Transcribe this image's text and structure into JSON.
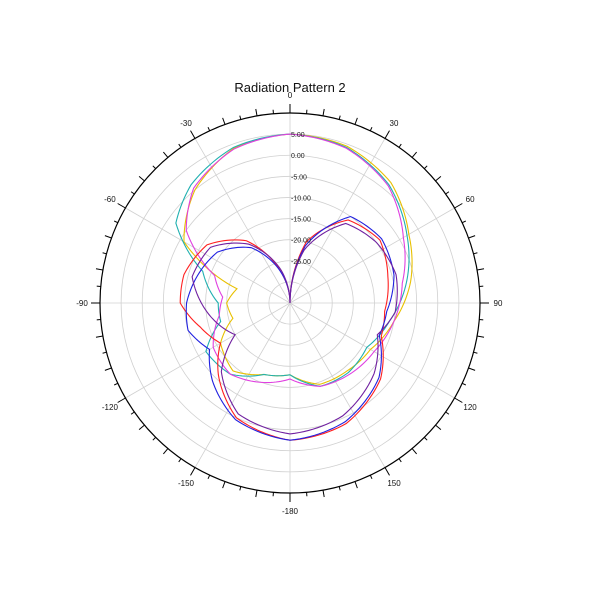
{
  "chart_data": {
    "type": "polar",
    "title": "Radiation Pattern 2",
    "angle_ticks": [
      {
        "deg": 0,
        "label": "0"
      },
      {
        "deg": 30,
        "label": "30"
      },
      {
        "deg": 60,
        "label": "60"
      },
      {
        "deg": 90,
        "label": "90"
      },
      {
        "deg": 120,
        "label": "120"
      },
      {
        "deg": 150,
        "label": "150"
      },
      {
        "deg": 180,
        "label": "-180"
      },
      {
        "deg": -150,
        "label": "-150"
      },
      {
        "deg": -120,
        "label": "-120"
      },
      {
        "deg": -90,
        "label": "-90"
      },
      {
        "deg": -60,
        "label": "-60"
      },
      {
        "deg": -30,
        "label": "-30"
      }
    ],
    "radial_min": -35,
    "radial_max": 10,
    "radial_ticks": [
      {
        "value": 5,
        "label": "5.00"
      },
      {
        "value": 0,
        "label": "0.00"
      },
      {
        "value": -5,
        "label": "-5.00"
      },
      {
        "value": -10,
        "label": "-10.00"
      },
      {
        "value": -15,
        "label": "-15.00"
      },
      {
        "value": -20,
        "label": "-20.00"
      },
      {
        "value": -25,
        "label": "-25.00"
      }
    ],
    "grid": true,
    "series": [
      {
        "color": "#e8c000",
        "points": [
          [
            0,
            5
          ],
          [
            20,
            4.5
          ],
          [
            40,
            2.2
          ],
          [
            60,
            -2.5
          ],
          [
            80,
            -6
          ],
          [
            100,
            -10
          ],
          [
            120,
            -13
          ],
          [
            140,
            -14
          ],
          [
            160,
            -14.5
          ],
          [
            180,
            -18
          ],
          [
            200,
            -17
          ],
          [
            220,
            -14
          ],
          [
            240,
            -16
          ],
          [
            255,
            -21
          ],
          [
            270,
            -20
          ],
          [
            285,
            -22
          ],
          [
            300,
            -6
          ],
          [
            320,
            0
          ],
          [
            340,
            4
          ],
          [
            360,
            5
          ]
        ]
      },
      {
        "color": "#20b0b0",
        "points": [
          [
            0,
            5
          ],
          [
            20,
            4.2
          ],
          [
            40,
            1.5
          ],
          [
            60,
            -3
          ],
          [
            80,
            -7
          ],
          [
            100,
            -11
          ],
          [
            120,
            -14
          ],
          [
            140,
            -13.5
          ],
          [
            160,
            -14
          ],
          [
            180,
            -18
          ],
          [
            200,
            -17
          ],
          [
            220,
            -13
          ],
          [
            240,
            -12
          ],
          [
            255,
            -18
          ],
          [
            270,
            -18
          ],
          [
            290,
            -13
          ],
          [
            305,
            -2
          ],
          [
            320,
            1.5
          ],
          [
            340,
            4.2
          ],
          [
            360,
            5
          ]
        ]
      },
      {
        "color": "#e040e0",
        "points": [
          [
            0,
            5
          ],
          [
            20,
            4
          ],
          [
            40,
            1.2
          ],
          [
            60,
            -4
          ],
          [
            80,
            -8
          ],
          [
            100,
            -10
          ],
          [
            120,
            -12
          ],
          [
            140,
            -13
          ],
          [
            160,
            -14
          ],
          [
            180,
            -17
          ],
          [
            200,
            -15
          ],
          [
            220,
            -13
          ],
          [
            240,
            -14
          ],
          [
            260,
            -18
          ],
          [
            275,
            -19
          ],
          [
            290,
            -16
          ],
          [
            305,
            -5
          ],
          [
            320,
            0.5
          ],
          [
            340,
            3.8
          ],
          [
            360,
            5
          ]
        ]
      },
      {
        "color": "#ff2020",
        "points": [
          [
            0,
            -35
          ],
          [
            15,
            -20
          ],
          [
            35,
            -11
          ],
          [
            55,
            -9
          ],
          [
            75,
            -11
          ],
          [
            95,
            -12.5
          ],
          [
            110,
            -12
          ],
          [
            130,
            -7
          ],
          [
            155,
            -3.5
          ],
          [
            180,
            -2.5
          ],
          [
            205,
            -5
          ],
          [
            225,
            -11
          ],
          [
            240,
            -16
          ],
          [
            255,
            -13
          ],
          [
            270,
            -9
          ],
          [
            285,
            -9
          ],
          [
            305,
            -11
          ],
          [
            325,
            -17
          ],
          [
            345,
            -28
          ],
          [
            360,
            -35
          ]
        ]
      },
      {
        "color": "#2020e0",
        "points": [
          [
            0,
            -35
          ],
          [
            15,
            -21
          ],
          [
            35,
            -10
          ],
          [
            55,
            -8.5
          ],
          [
            75,
            -9.5
          ],
          [
            95,
            -12
          ],
          [
            110,
            -12.5
          ],
          [
            130,
            -7.5
          ],
          [
            155,
            -4
          ],
          [
            180,
            -2.5
          ],
          [
            205,
            -4.5
          ],
          [
            225,
            -9
          ],
          [
            240,
            -13
          ],
          [
            255,
            -10
          ],
          [
            270,
            -10.5
          ],
          [
            285,
            -12
          ],
          [
            305,
            -14
          ],
          [
            325,
            -19
          ],
          [
            345,
            -28
          ],
          [
            360,
            -35
          ]
        ]
      },
      {
        "color": "#7020a0",
        "points": [
          [
            0,
            -35
          ],
          [
            15,
            -22
          ],
          [
            35,
            -12
          ],
          [
            55,
            -10
          ],
          [
            75,
            -9
          ],
          [
            95,
            -10
          ],
          [
            110,
            -13
          ],
          [
            130,
            -9
          ],
          [
            155,
            -5.5
          ],
          [
            180,
            -4
          ],
          [
            205,
            -6
          ],
          [
            225,
            -12
          ],
          [
            240,
            -20
          ],
          [
            255,
            -17
          ],
          [
            270,
            -14
          ],
          [
            285,
            -11
          ],
          [
            305,
            -12
          ],
          [
            325,
            -18
          ],
          [
            345,
            -27
          ],
          [
            360,
            -35
          ]
        ]
      }
    ]
  }
}
